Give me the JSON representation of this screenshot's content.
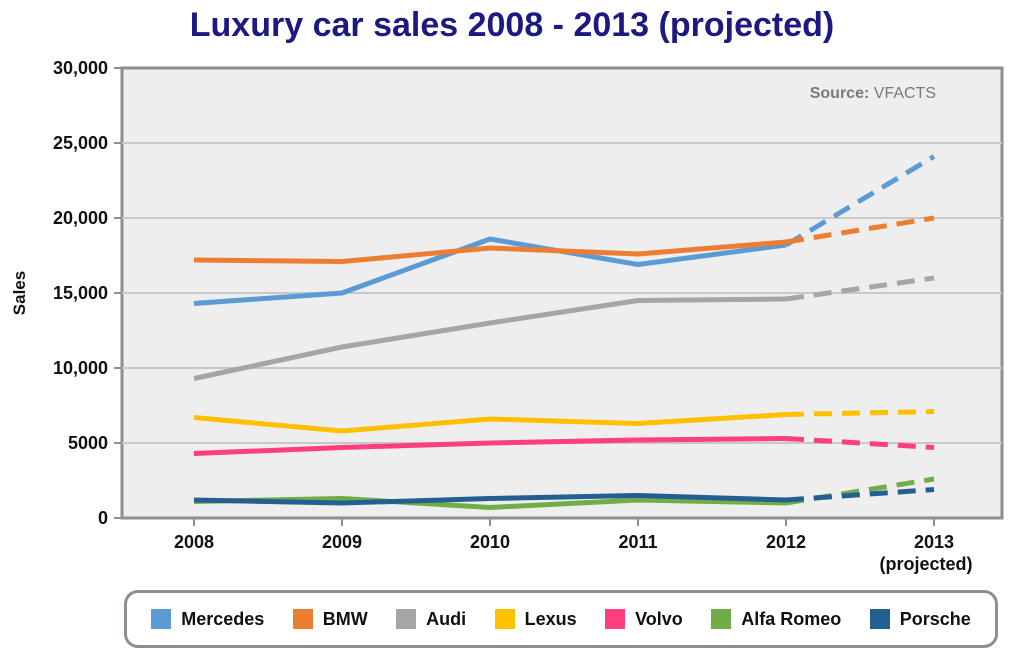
{
  "chart_data": {
    "type": "line",
    "title": "Luxury car sales 2008 - 2013 (projected)",
    "xlabel": "",
    "ylabel": "Sales",
    "source_label": "Source:",
    "source_value": "VFACTS",
    "categories": [
      "2008",
      "2009",
      "2010",
      "2011",
      "2012",
      "2013"
    ],
    "category_sublabels": [
      "",
      "",
      "",
      "",
      "",
      "(projected)"
    ],
    "projected_from_index": 4,
    "ylim": [
      0,
      30000
    ],
    "yticks": [
      0,
      5000,
      10000,
      15000,
      20000,
      25000,
      30000
    ],
    "ytick_labels": [
      "0",
      "5000",
      "10,000",
      "15,000",
      "20,000",
      "25,000",
      "30,000"
    ],
    "grid": true,
    "legend_position": "bottom",
    "series": [
      {
        "name": "Mercedes",
        "color": "#5b9bd5",
        "values": [
          14300,
          15000,
          18600,
          16900,
          18200,
          24100
        ]
      },
      {
        "name": "BMW",
        "color": "#ed7d31",
        "values": [
          17200,
          17100,
          18000,
          17600,
          18400,
          20000
        ]
      },
      {
        "name": "Audi",
        "color": "#a5a5a5",
        "values": [
          9300,
          11400,
          13000,
          14500,
          14600,
          16000
        ]
      },
      {
        "name": "Lexus",
        "color": "#ffc000",
        "values": [
          6700,
          5800,
          6600,
          6300,
          6900,
          7100
        ]
      },
      {
        "name": "Volvo",
        "color": "#ff3d7f",
        "values": [
          4300,
          4700,
          5000,
          5200,
          5300,
          4700
        ]
      },
      {
        "name": "Alfa Romeo",
        "color": "#70ad47",
        "values": [
          1100,
          1300,
          700,
          1200,
          1000,
          2600
        ]
      },
      {
        "name": "Porsche",
        "color": "#255e91",
        "values": [
          1200,
          1000,
          1300,
          1500,
          1200,
          1900
        ]
      }
    ]
  }
}
